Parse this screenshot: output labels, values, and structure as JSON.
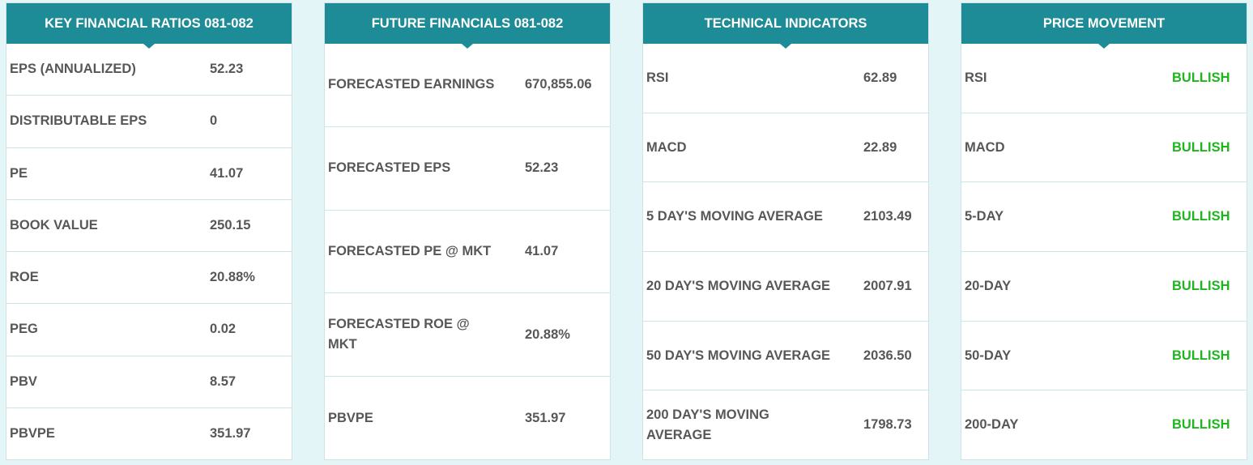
{
  "panels": {
    "key_financial_ratios": {
      "title": "KEY FINANCIAL RATIOS 081-082",
      "rows": [
        {
          "label": "EPS (ANNUALIZED)",
          "value": "52.23"
        },
        {
          "label": "DISTRIBUTABLE EPS",
          "value": "0"
        },
        {
          "label": "PE",
          "value": "41.07"
        },
        {
          "label": "BOOK VALUE",
          "value": "250.15"
        },
        {
          "label": "ROE",
          "value": "20.88%"
        },
        {
          "label": "PEG",
          "value": "0.02"
        },
        {
          "label": "PBV",
          "value": "8.57"
        },
        {
          "label": "PBVPE",
          "value": "351.97"
        }
      ]
    },
    "future_financials": {
      "title": "FUTURE FINANCIALS 081-082",
      "rows": [
        {
          "label": "FORECASTED EARNINGS",
          "value": "670,855.06"
        },
        {
          "label": "FORECASTED EPS",
          "value": "52.23"
        },
        {
          "label": "FORECASTED PE @ MKT",
          "value": "41.07"
        },
        {
          "label": "FORECASTED ROE @ MKT",
          "value": "20.88%"
        },
        {
          "label": "PBVPE",
          "value": "351.97"
        }
      ]
    },
    "technical_indicators": {
      "title": "TECHNICAL INDICATORS",
      "rows": [
        {
          "label": "RSI",
          "value": "62.89"
        },
        {
          "label": "MACD",
          "value": "22.89"
        },
        {
          "label": "5 DAY'S MOVING AVERAGE",
          "value": "2103.49"
        },
        {
          "label": "20 DAY'S MOVING AVERAGE",
          "value": "2007.91"
        },
        {
          "label": "50 DAY'S MOVING AVERAGE",
          "value": "2036.50"
        },
        {
          "label": "200 DAY'S MOVING AVERAGE",
          "value": "1798.73"
        }
      ]
    },
    "price_movement": {
      "title": "PRICE MOVEMENT",
      "value_color": "#1fb51f",
      "rows": [
        {
          "label": "RSI",
          "value": "BULLISH"
        },
        {
          "label": "MACD",
          "value": "BULLISH"
        },
        {
          "label": "5-DAY",
          "value": "BULLISH"
        },
        {
          "label": "20-DAY",
          "value": "BULLISH"
        },
        {
          "label": "50-DAY",
          "value": "BULLISH"
        },
        {
          "label": "200-DAY",
          "value": "BULLISH"
        }
      ]
    }
  },
  "colors": {
    "header_bg": "#1e8c96",
    "page_bg": "#e4f5f7",
    "text": "#575757",
    "bullish": "#1fb51f"
  }
}
